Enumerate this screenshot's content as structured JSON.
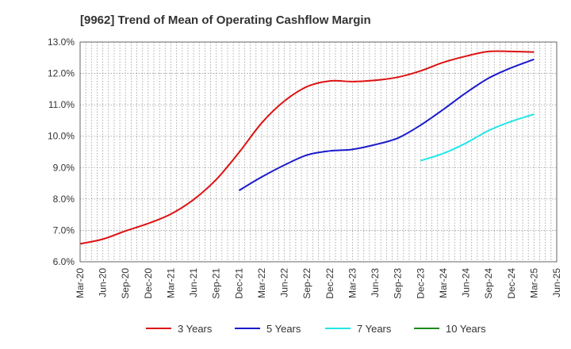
{
  "chart_data": {
    "type": "line",
    "title": "[9962]  Trend of Mean of Operating Cashflow Margin",
    "xlabel": "",
    "ylabel": "",
    "x": [
      "Mar-20",
      "Jun-20",
      "Sep-20",
      "Dec-20",
      "Mar-21",
      "Jun-21",
      "Sep-21",
      "Dec-21",
      "Mar-22",
      "Jun-22",
      "Sep-22",
      "Dec-22",
      "Mar-23",
      "Jun-23",
      "Sep-23",
      "Dec-23",
      "Mar-24",
      "Jun-24",
      "Sep-24",
      "Dec-24",
      "Mar-25",
      "Jun-25"
    ],
    "ylim": [
      6.0,
      13.0
    ],
    "yticks": [
      "6.0%",
      "7.0%",
      "8.0%",
      "9.0%",
      "10.0%",
      "11.0%",
      "12.0%",
      "13.0%"
    ],
    "grid": true,
    "legend_position": "bottom",
    "series": [
      {
        "name": "3 Years",
        "color": "#dd1111",
        "values": [
          6.57,
          6.72,
          6.98,
          7.22,
          7.52,
          7.98,
          8.62,
          9.48,
          10.42,
          11.12,
          11.58,
          11.76,
          11.74,
          11.78,
          11.88,
          12.08,
          12.35,
          12.55,
          12.7,
          12.7,
          12.68,
          null
        ]
      },
      {
        "name": "5 Years",
        "color": "#1a1acc",
        "values": [
          null,
          null,
          null,
          null,
          null,
          null,
          null,
          8.27,
          8.7,
          9.08,
          9.4,
          9.53,
          9.58,
          9.73,
          9.94,
          10.35,
          10.85,
          11.38,
          11.85,
          12.18,
          12.45,
          null
        ]
      },
      {
        "name": "7 Years",
        "color": "#22e6e6",
        "values": [
          null,
          null,
          null,
          null,
          null,
          null,
          null,
          null,
          null,
          null,
          null,
          null,
          null,
          null,
          null,
          9.22,
          9.45,
          9.78,
          10.18,
          10.47,
          10.7,
          null
        ]
      },
      {
        "name": "10 Years",
        "color": "#1a8c1a",
        "values": [
          null,
          null,
          null,
          null,
          null,
          null,
          null,
          null,
          null,
          null,
          null,
          null,
          null,
          null,
          null,
          null,
          null,
          null,
          null,
          null,
          null,
          null
        ]
      }
    ]
  }
}
